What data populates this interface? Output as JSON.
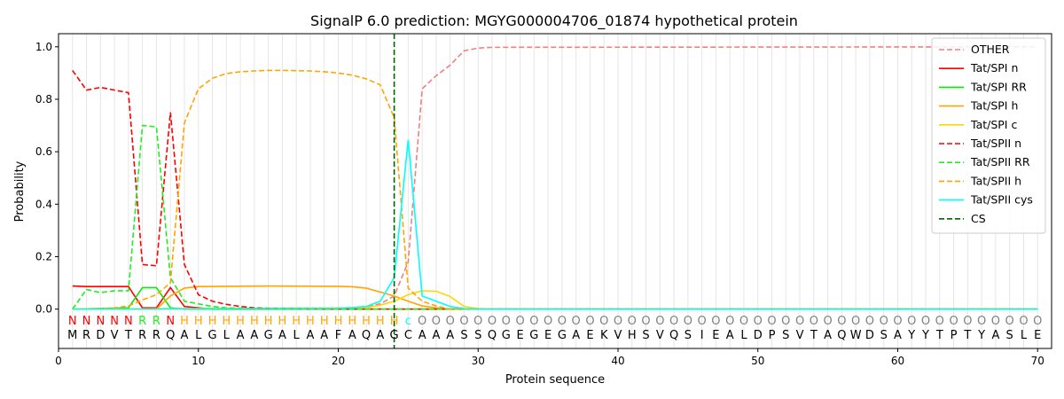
{
  "chart_data": {
    "type": "line",
    "title": "SignalP 6.0 prediction: MGYG000004706_01874 hypothetical protein",
    "xlabel": "Protein sequence",
    "ylabel": "Probability",
    "xlim": [
      0,
      71
    ],
    "ylim": [
      -0.15,
      1.05
    ],
    "x_ticks": [
      0,
      10,
      20,
      30,
      40,
      50,
      60,
      70
    ],
    "y_ticks": [
      0.0,
      0.2,
      0.4,
      0.6,
      0.8,
      1.0
    ],
    "x_tick_labels": [
      "0",
      "10",
      "20",
      "30",
      "40",
      "50",
      "60",
      "70"
    ],
    "y_tick_labels": [
      "0.0",
      "0.2",
      "0.4",
      "0.6",
      "0.8",
      "1.0"
    ],
    "grid": "vertical lines at each residue",
    "legend_position": "top-right",
    "cleavage_site": 24,
    "sequence": [
      "M",
      "R",
      "D",
      "V",
      "T",
      "R",
      "R",
      "Q",
      "A",
      "L",
      "G",
      "L",
      "A",
      "A",
      "G",
      "A",
      "L",
      "A",
      "A",
      "F",
      "A",
      "Q",
      "A",
      "G",
      "C",
      "A",
      "A",
      "A",
      "S",
      "S",
      "Q",
      "G",
      "E",
      "G",
      "E",
      "G",
      "A",
      "E",
      "K",
      "V",
      "H",
      "S",
      "V",
      "Q",
      "S",
      "I",
      "E",
      "A",
      "L",
      "D",
      "P",
      "S",
      "V",
      "T",
      "A",
      "Q",
      "W",
      "D",
      "S",
      "A",
      "Y",
      "Y",
      "T",
      "P",
      "T",
      "Y",
      "A",
      "S",
      "L",
      "E"
    ],
    "labels": [
      "N",
      "N",
      "N",
      "N",
      "N",
      "R",
      "R",
      "N",
      "H",
      "H",
      "H",
      "H",
      "H",
      "H",
      "H",
      "H",
      "H",
      "H",
      "H",
      "H",
      "H",
      "H",
      "H",
      "H",
      "C",
      "O",
      "O",
      "O",
      "O",
      "O",
      "O",
      "O",
      "O",
      "O",
      "O",
      "O",
      "O",
      "O",
      "O",
      "O",
      "O",
      "O",
      "O",
      "O",
      "O",
      "O",
      "O",
      "O",
      "O",
      "O",
      "O",
      "O",
      "O",
      "O",
      "O",
      "O",
      "O",
      "O",
      "O",
      "O",
      "O",
      "O",
      "O",
      "O",
      "O",
      "O",
      "O",
      "O",
      "O",
      "O"
    ],
    "label_colors": {
      "N": "#ff0000",
      "R": "#22ee22",
      "H": "#ffa500",
      "C": "#00ffff",
      "O": "#808080"
    },
    "series": [
      {
        "name": "OTHER",
        "color": "#f08080",
        "dash": true,
        "points": [
          [
            1,
            0
          ],
          [
            21,
            0.005
          ],
          [
            22,
            0.01
          ],
          [
            23,
            0.02
          ],
          [
            24,
            0.05
          ],
          [
            25,
            0.18
          ],
          [
            26,
            0.84
          ],
          [
            27,
            0.89
          ],
          [
            28,
            0.93
          ],
          [
            29,
            0.985
          ],
          [
            30,
            0.995
          ],
          [
            31,
            0.998
          ],
          [
            70,
            1.0
          ]
        ]
      },
      {
        "name": "Tat/SPI n",
        "color": "#ff0000",
        "dash": false,
        "points": [
          [
            1,
            0.088
          ],
          [
            2,
            0.086
          ],
          [
            3,
            0.086
          ],
          [
            4,
            0.086
          ],
          [
            5,
            0.086
          ],
          [
            6,
            0.005
          ],
          [
            7,
            0.005
          ],
          [
            8,
            0.082
          ],
          [
            9,
            0.01
          ],
          [
            10,
            0.005
          ],
          [
            11,
            0.0
          ],
          [
            70,
            0.0
          ]
        ]
      },
      {
        "name": "Tat/SPI RR",
        "color": "#00ee00",
        "dash": false,
        "points": [
          [
            1,
            0
          ],
          [
            5,
            0.005
          ],
          [
            6,
            0.082
          ],
          [
            7,
            0.082
          ],
          [
            8,
            0.005
          ],
          [
            9,
            0.0
          ],
          [
            70,
            0.0
          ]
        ]
      },
      {
        "name": "Tat/SPI h",
        "color": "#ffa500",
        "dash": false,
        "points": [
          [
            1,
            0
          ],
          [
            7,
            0.0
          ],
          [
            8,
            0.05
          ],
          [
            9,
            0.08
          ],
          [
            10,
            0.086
          ],
          [
            15,
            0.088
          ],
          [
            20,
            0.087
          ],
          [
            21,
            0.085
          ],
          [
            22,
            0.08
          ],
          [
            23,
            0.065
          ],
          [
            24,
            0.05
          ],
          [
            25,
            0.03
          ],
          [
            26,
            0.012
          ],
          [
            27,
            0.005
          ],
          [
            28,
            0.0
          ],
          [
            70,
            0.0
          ]
        ]
      },
      {
        "name": "Tat/SPI c",
        "color": "#ffd700",
        "dash": false,
        "points": [
          [
            1,
            0
          ],
          [
            22,
            0.005
          ],
          [
            23,
            0.015
          ],
          [
            24,
            0.03
          ],
          [
            25,
            0.055
          ],
          [
            26,
            0.07
          ],
          [
            27,
            0.068
          ],
          [
            28,
            0.048
          ],
          [
            29,
            0.01
          ],
          [
            30,
            0.002
          ],
          [
            31,
            0.0
          ],
          [
            70,
            0.0
          ]
        ]
      },
      {
        "name": "Tat/SPII n",
        "color": "#ff0000",
        "dash": true,
        "points": [
          [
            1,
            0.91
          ],
          [
            2,
            0.835
          ],
          [
            3,
            0.845
          ],
          [
            4,
            0.835
          ],
          [
            5,
            0.825
          ],
          [
            6,
            0.17
          ],
          [
            7,
            0.165
          ],
          [
            8,
            0.75
          ],
          [
            9,
            0.17
          ],
          [
            10,
            0.055
          ],
          [
            11,
            0.03
          ],
          [
            12,
            0.018
          ],
          [
            13,
            0.01
          ],
          [
            14,
            0.005
          ],
          [
            15,
            0.003
          ],
          [
            20,
            0.0
          ],
          [
            70,
            0.0
          ]
        ]
      },
      {
        "name": "Tat/SPII RR",
        "color": "#22ee22",
        "dash": true,
        "points": [
          [
            1,
            0.0
          ],
          [
            2,
            0.075
          ],
          [
            3,
            0.063
          ],
          [
            4,
            0.07
          ],
          [
            5,
            0.07
          ],
          [
            6,
            0.7
          ],
          [
            7,
            0.695
          ],
          [
            8,
            0.12
          ],
          [
            9,
            0.03
          ],
          [
            10,
            0.02
          ],
          [
            11,
            0.01
          ],
          [
            12,
            0.005
          ],
          [
            15,
            0.0
          ],
          [
            70,
            0.0
          ]
        ]
      },
      {
        "name": "Tat/SPII h",
        "color": "#ffa500",
        "dash": true,
        "points": [
          [
            1,
            0
          ],
          [
            3,
            0.002
          ],
          [
            4,
            0.005
          ],
          [
            5,
            0.012
          ],
          [
            6,
            0.035
          ],
          [
            7,
            0.055
          ],
          [
            8,
            0.1
          ],
          [
            9,
            0.71
          ],
          [
            10,
            0.84
          ],
          [
            11,
            0.88
          ],
          [
            12,
            0.898
          ],
          [
            13,
            0.905
          ],
          [
            14,
            0.908
          ],
          [
            15,
            0.91
          ],
          [
            16,
            0.91
          ],
          [
            17,
            0.909
          ],
          [
            18,
            0.908
          ],
          [
            19,
            0.905
          ],
          [
            20,
            0.9
          ],
          [
            21,
            0.892
          ],
          [
            22,
            0.878
          ],
          [
            23,
            0.855
          ],
          [
            24,
            0.73
          ],
          [
            25,
            0.08
          ],
          [
            26,
            0.03
          ],
          [
            27,
            0.012
          ],
          [
            28,
            0.0
          ],
          [
            70,
            0.0
          ]
        ]
      },
      {
        "name": "Tat/SPII cys",
        "color": "#00ffff",
        "dash": false,
        "points": [
          [
            1,
            0
          ],
          [
            20,
            0.003
          ],
          [
            21,
            0.006
          ],
          [
            22,
            0.01
          ],
          [
            23,
            0.03
          ],
          [
            24,
            0.12
          ],
          [
            25,
            0.645
          ],
          [
            26,
            0.05
          ],
          [
            27,
            0.03
          ],
          [
            28,
            0.01
          ],
          [
            29,
            0.002
          ],
          [
            30,
            0.0
          ],
          [
            70,
            0.0
          ]
        ]
      }
    ],
    "legend_extra": [
      {
        "name": "CS",
        "color": "#006400",
        "dash": true
      }
    ]
  }
}
